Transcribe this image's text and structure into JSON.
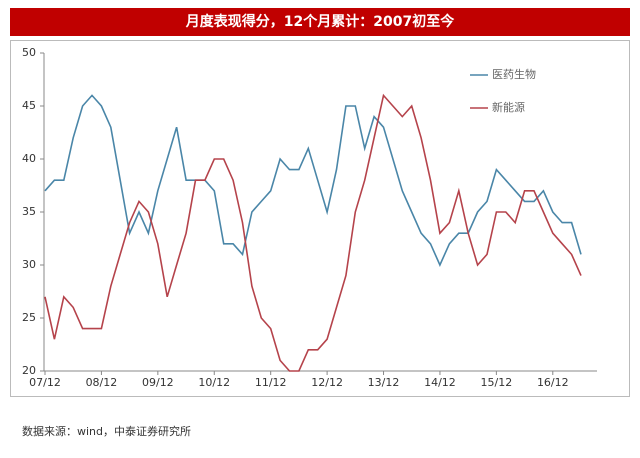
{
  "chart_data": {
    "type": "line",
    "title": "月度表现得分，12个月累计：2007初至今",
    "source": "数据来源：wind，中泰证券研究所",
    "categories": [
      "07/12",
      null,
      null,
      null,
      null,
      null,
      "08/12",
      null,
      null,
      null,
      null,
      null,
      "09/12",
      null,
      null,
      null,
      null,
      null,
      "10/12",
      null,
      null,
      null,
      null,
      null,
      "11/12",
      null,
      null,
      null,
      null,
      null,
      "12/12",
      null,
      null,
      null,
      null,
      null,
      "13/12",
      null,
      null,
      null,
      null,
      null,
      "14/12",
      null,
      null,
      null,
      null,
      null,
      "15/12",
      null,
      null,
      null,
      null,
      null,
      "16/12",
      null,
      null,
      null
    ],
    "series": [
      {
        "name": "医药生物",
        "color": "#4a86a8",
        "values": [
          37,
          38,
          38,
          42,
          45,
          46,
          45,
          43,
          38,
          33,
          35,
          33,
          37,
          40,
          43,
          38,
          38,
          38,
          37,
          32,
          32,
          31,
          35,
          36,
          37,
          40,
          39,
          39,
          41,
          38,
          35,
          39,
          45,
          45,
          41,
          44,
          43,
          40,
          37,
          35,
          33,
          32,
          30,
          32,
          33,
          33,
          35,
          36,
          39,
          38,
          37,
          36,
          36,
          37,
          35,
          34,
          34,
          31
        ]
      },
      {
        "name": "新能源",
        "color": "#b5434b",
        "values": [
          27,
          23,
          27,
          26,
          24,
          24,
          24,
          28,
          31,
          34,
          36,
          35,
          32,
          27,
          30,
          33,
          38,
          38,
          40,
          40,
          38,
          34,
          28,
          25,
          24,
          21,
          20,
          20,
          22,
          22,
          23,
          26,
          29,
          35,
          38,
          42,
          46,
          45,
          44,
          45,
          42,
          38,
          33,
          34,
          37,
          33,
          30,
          31,
          35,
          35,
          34,
          37,
          37,
          35,
          33,
          32,
          31,
          29
        ]
      }
    ],
    "ylim": [
      20,
      50
    ],
    "yticks": [
      20,
      25,
      30,
      35,
      40,
      45,
      50
    ],
    "grid": false,
    "legend": "upper right"
  }
}
